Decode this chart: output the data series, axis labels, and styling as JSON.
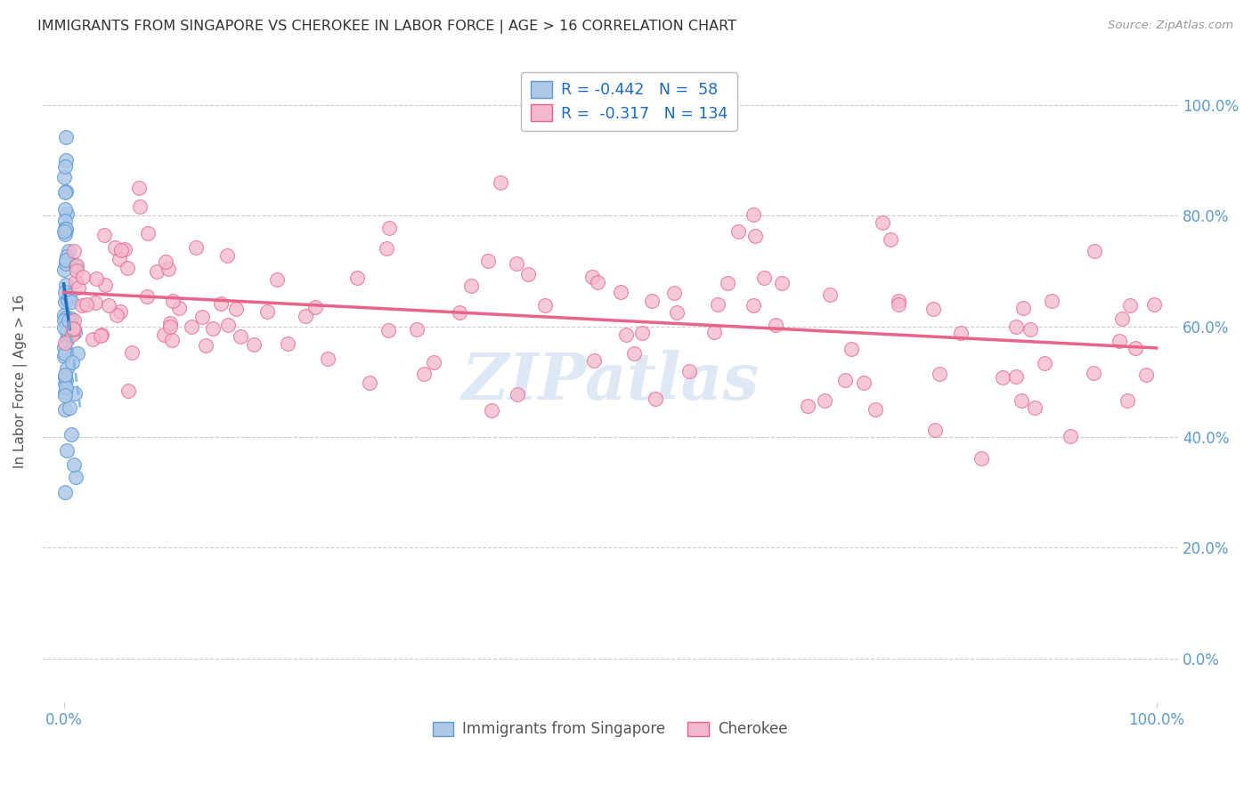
{
  "title": "IMMIGRANTS FROM SINGAPORE VS CHEROKEE IN LABOR FORCE | AGE > 16 CORRELATION CHART",
  "source": "Source: ZipAtlas.com",
  "ylabel": "In Labor Force | Age > 16",
  "ytick_labels": [
    "0.0%",
    "20.0%",
    "40.0%",
    "60.0%",
    "80.0%",
    "100.0%"
  ],
  "ytick_values": [
    0,
    20,
    40,
    60,
    80,
    100
  ],
  "xtick_labels": [
    "0.0%",
    "100.0%"
  ],
  "xtick_values": [
    0,
    100
  ],
  "xlim": [
    -2,
    102
  ],
  "ylim": [
    -8,
    108
  ],
  "color_blue_fill": "#aec8e8",
  "color_blue_edge": "#5b9bd5",
  "color_pink_fill": "#f4b8cb",
  "color_pink_edge": "#e8648a",
  "color_line_blue_solid": "#1f6fbf",
  "color_line_blue_dashed": "#7fb3e0",
  "color_line_pink": "#e8648a",
  "color_grid": "#cccccc",
  "color_tick_labels": "#5b9bd5",
  "color_title": "#333333",
  "color_source": "#999999",
  "color_ylabel": "#555555",
  "color_watermark": "#c5d8ee",
  "legend_text_r1": "R = -0.442",
  "legend_text_n1": "N =  58",
  "legend_text_r2": "R =  -0.317",
  "legend_text_n2": "N = 134",
  "legend_color_text": "#1a6bcc",
  "sg_seed": 123,
  "ck_seed": 456
}
